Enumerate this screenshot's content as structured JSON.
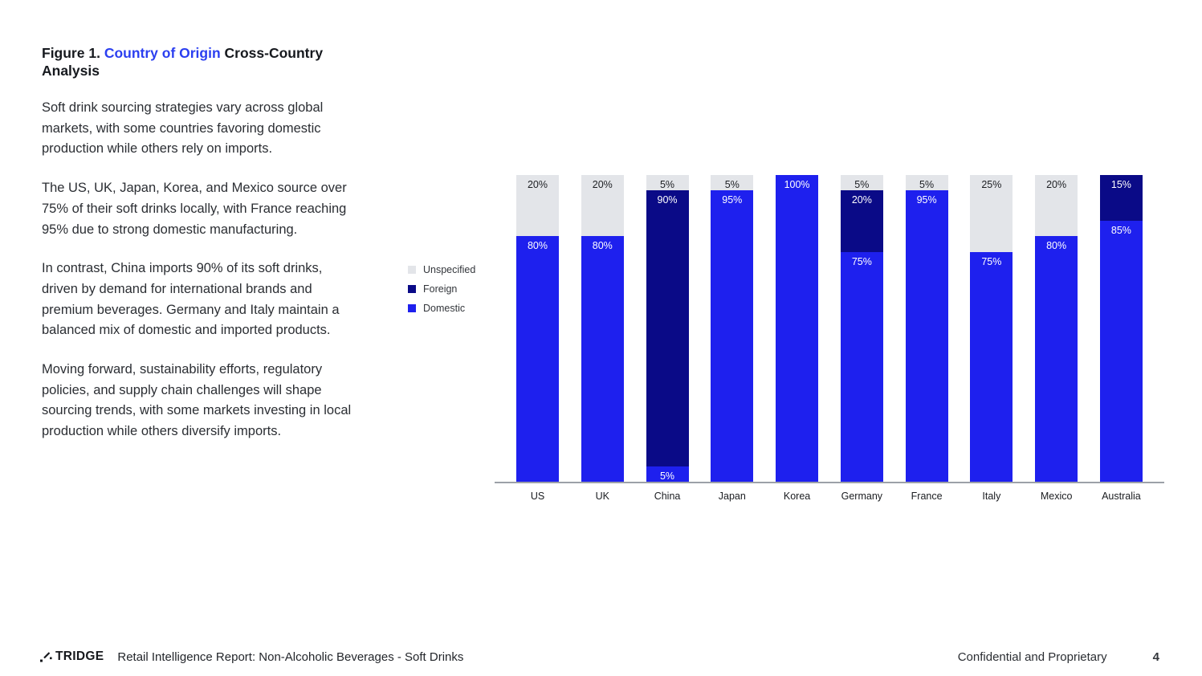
{
  "title": {
    "figure_label": "Figure 1.",
    "highlight": "Country of Origin",
    "rest": "Cross-Country Analysis"
  },
  "paragraphs": [
    "Soft drink sourcing strategies vary across global markets, with some countries favoring domestic production while others rely on imports.",
    "The US, UK, Japan, Korea, and Mexico source over 75% of their soft drinks locally, with France reaching 95% due to strong domestic manufacturing.",
    "In contrast, China imports 90% of its soft drinks, driven by demand for international brands and premium beverages. Germany and Italy maintain a balanced mix of domestic and imported products.",
    "Moving forward, sustainability efforts, regulatory policies, and supply chain challenges will shape sourcing trends, with some markets investing in local production while others diversify imports."
  ],
  "legend": [
    {
      "label": "Unspecified",
      "color": "#e3e5e9"
    },
    {
      "label": "Foreign",
      "color": "#0a0a87"
    },
    {
      "label": "Domestic",
      "color": "#1e20ee"
    }
  ],
  "chart_data": {
    "type": "bar",
    "subtype": "stacked_percent",
    "categories": [
      "US",
      "UK",
      "China",
      "Japan",
      "Korea",
      "Germany",
      "France",
      "Italy",
      "Mexico",
      "Australia"
    ],
    "series": [
      {
        "name": "Domestic",
        "color": "#1e20ee",
        "values": [
          80,
          80,
          5,
          95,
          100,
          75,
          95,
          75,
          80,
          85
        ]
      },
      {
        "name": "Foreign",
        "color": "#0a0a87",
        "values": [
          0,
          0,
          90,
          0,
          0,
          20,
          0,
          0,
          0,
          15
        ]
      },
      {
        "name": "Unspecified",
        "color": "#e3e5e9",
        "values": [
          20,
          20,
          5,
          5,
          0,
          5,
          5,
          25,
          20,
          0
        ]
      }
    ],
    "stack_order_top_to_bottom": [
      "Unspecified",
      "Foreign",
      "Domestic"
    ],
    "value_label_format": "percent",
    "ylim": [
      0,
      100
    ],
    "legend_position": "left",
    "grid": false
  },
  "colors": {
    "accent_title": "#2b3ff0",
    "axis_line": "#9ca1a8"
  },
  "footer": {
    "logo_text": "TRIDGE",
    "report_title": "Retail Intelligence Report: Non-Alcoholic Beverages - Soft Drinks",
    "confidential": "Confidential and Proprietary",
    "page_number": "4"
  }
}
